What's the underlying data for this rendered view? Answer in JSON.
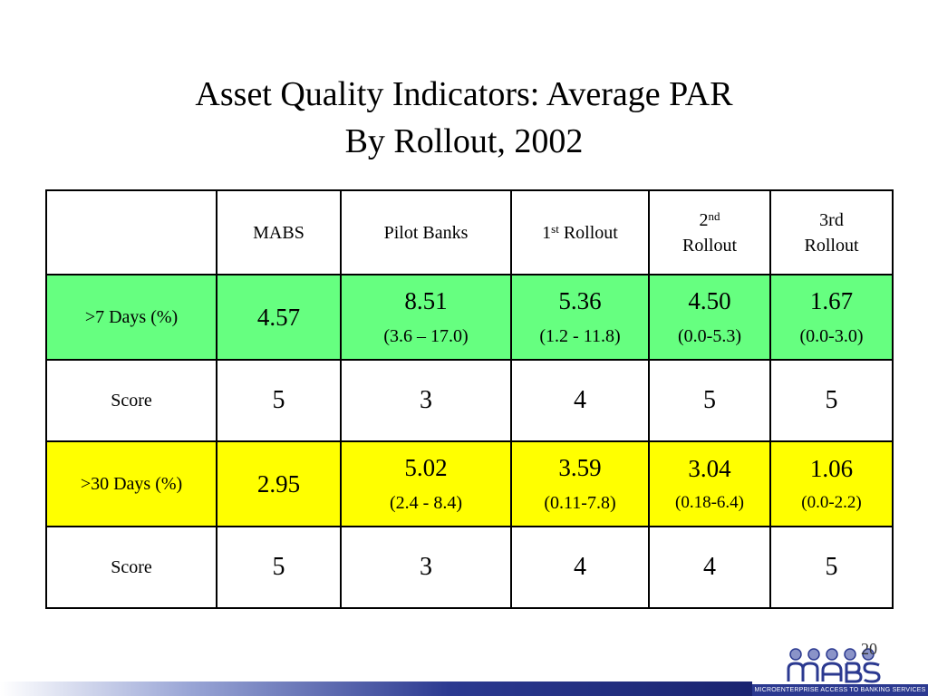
{
  "title": {
    "line1": "Asset Quality Indicators: Average PAR",
    "line2": "By Rollout, 2002"
  },
  "table": {
    "headers": {
      "mabs": "MABS",
      "pilot": "Pilot Banks",
      "r1_num": "1",
      "r1_sup": "st",
      "r1_text": " Rollout",
      "r2_num": "2",
      "r2_sup": "nd",
      "r2_text": "Rollout",
      "r3_line1": "3rd",
      "r3_line2": "Rollout"
    },
    "rows": [
      {
        "label": ">7 Days (%)",
        "values": [
          "4.57",
          "8.51",
          "5.36",
          "4.50",
          "1.67"
        ],
        "ranges": [
          "",
          "(3.6 – 17.0)",
          "(1.2 - 11.8)",
          "(0.0-5.3)",
          "(0.0-3.0)"
        ]
      },
      {
        "label": "Score",
        "values": [
          "5",
          "3",
          "4",
          "5",
          "5"
        ]
      },
      {
        "label": ">30 Days (%)",
        "values": [
          "2.95",
          "5.02",
          "3.59",
          "3.04",
          "1.06"
        ],
        "ranges": [
          "",
          "(2.4 - 8.4)",
          "(0.11-7.8)",
          "(0.18-6.4)",
          "(0.0-2.2)"
        ]
      },
      {
        "label": "Score",
        "values": [
          "5",
          "3",
          "4",
          "4",
          "5"
        ]
      }
    ]
  },
  "page_number": "20",
  "logo": {
    "text": "MABS",
    "caption": "MICROENTERPRISE ACCESS TO BANKING SERVICES"
  },
  "colors": {
    "green_row": "#66ff80",
    "yellow_row": "#ffff00",
    "brand_blue": "#2b3990"
  }
}
